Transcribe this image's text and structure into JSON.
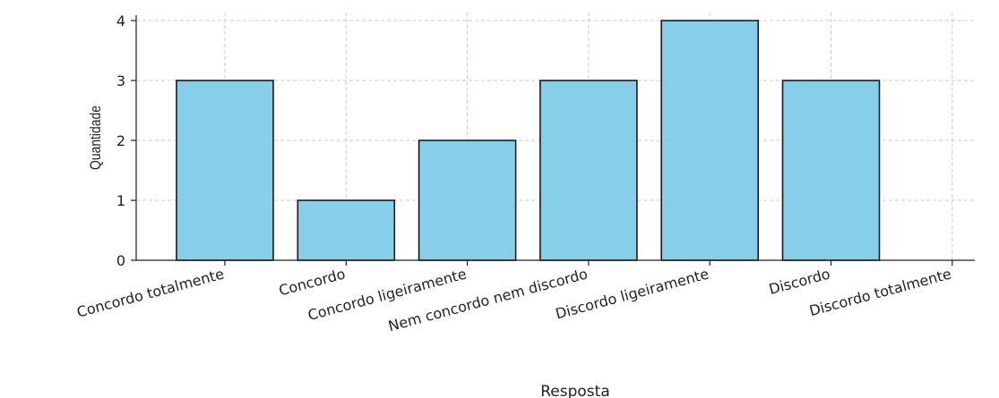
{
  "chart_data": {
    "type": "bar",
    "title": "",
    "xlabel": "Resposta",
    "ylabel": "Quantidade",
    "categories": [
      "Concordo totalmente",
      "Concordo",
      "Concordo ligeiramente",
      "Nem concordo nem discordo",
      "Discordo ligeiramente",
      "Discordo",
      "Discordo totalmente"
    ],
    "values": [
      3,
      1,
      2,
      3,
      4,
      3,
      0
    ],
    "ylim": [
      0,
      4.1
    ],
    "yticks": [
      "0",
      "1",
      "2",
      "3",
      "4"
    ],
    "grid": true,
    "bar_color": "#87ceeb",
    "edge_color": "#1a1a1a"
  }
}
